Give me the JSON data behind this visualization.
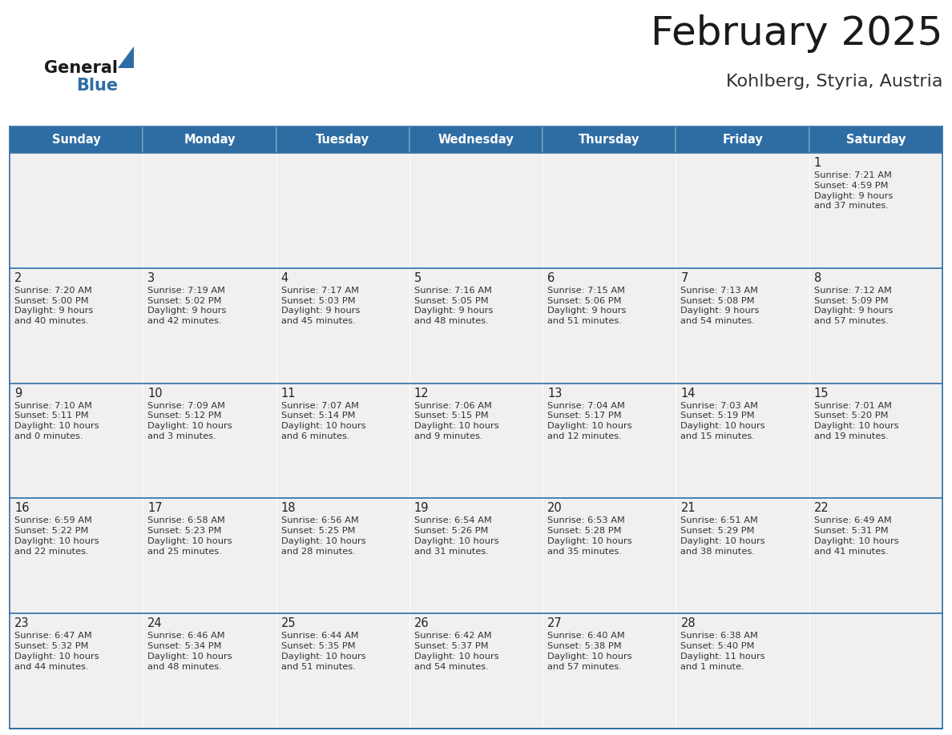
{
  "title": "February 2025",
  "subtitle": "Kohlberg, Styria, Austria",
  "header_bg": "#2E6DA4",
  "header_text": "#FFFFFF",
  "cell_bg": "#F0F0F0",
  "border_color": "#2E6DA4",
  "row_divider_color": "#2E6DA4",
  "day_headers": [
    "Sunday",
    "Monday",
    "Tuesday",
    "Wednesday",
    "Thursday",
    "Friday",
    "Saturday"
  ],
  "title_color": "#1a1a1a",
  "subtitle_color": "#333333",
  "cell_text_color": "#333333",
  "day_num_color": "#222222",
  "logo_color_general": "#1a1a1a",
  "logo_color_blue": "#2E6DA4",
  "logo_text_general": "General",
  "logo_text_blue": "Blue",
  "calendar_data": [
    [
      null,
      null,
      null,
      null,
      null,
      null,
      {
        "day": 1,
        "sunrise": "7:21 AM",
        "sunset": "4:59 PM",
        "daylight": "9 hours\nand 37 minutes."
      }
    ],
    [
      {
        "day": 2,
        "sunrise": "7:20 AM",
        "sunset": "5:00 PM",
        "daylight": "9 hours\nand 40 minutes."
      },
      {
        "day": 3,
        "sunrise": "7:19 AM",
        "sunset": "5:02 PM",
        "daylight": "9 hours\nand 42 minutes."
      },
      {
        "day": 4,
        "sunrise": "7:17 AM",
        "sunset": "5:03 PM",
        "daylight": "9 hours\nand 45 minutes."
      },
      {
        "day": 5,
        "sunrise": "7:16 AM",
        "sunset": "5:05 PM",
        "daylight": "9 hours\nand 48 minutes."
      },
      {
        "day": 6,
        "sunrise": "7:15 AM",
        "sunset": "5:06 PM",
        "daylight": "9 hours\nand 51 minutes."
      },
      {
        "day": 7,
        "sunrise": "7:13 AM",
        "sunset": "5:08 PM",
        "daylight": "9 hours\nand 54 minutes."
      },
      {
        "day": 8,
        "sunrise": "7:12 AM",
        "sunset": "5:09 PM",
        "daylight": "9 hours\nand 57 minutes."
      }
    ],
    [
      {
        "day": 9,
        "sunrise": "7:10 AM",
        "sunset": "5:11 PM",
        "daylight": "10 hours\nand 0 minutes."
      },
      {
        "day": 10,
        "sunrise": "7:09 AM",
        "sunset": "5:12 PM",
        "daylight": "10 hours\nand 3 minutes."
      },
      {
        "day": 11,
        "sunrise": "7:07 AM",
        "sunset": "5:14 PM",
        "daylight": "10 hours\nand 6 minutes."
      },
      {
        "day": 12,
        "sunrise": "7:06 AM",
        "sunset": "5:15 PM",
        "daylight": "10 hours\nand 9 minutes."
      },
      {
        "day": 13,
        "sunrise": "7:04 AM",
        "sunset": "5:17 PM",
        "daylight": "10 hours\nand 12 minutes."
      },
      {
        "day": 14,
        "sunrise": "7:03 AM",
        "sunset": "5:19 PM",
        "daylight": "10 hours\nand 15 minutes."
      },
      {
        "day": 15,
        "sunrise": "7:01 AM",
        "sunset": "5:20 PM",
        "daylight": "10 hours\nand 19 minutes."
      }
    ],
    [
      {
        "day": 16,
        "sunrise": "6:59 AM",
        "sunset": "5:22 PM",
        "daylight": "10 hours\nand 22 minutes."
      },
      {
        "day": 17,
        "sunrise": "6:58 AM",
        "sunset": "5:23 PM",
        "daylight": "10 hours\nand 25 minutes."
      },
      {
        "day": 18,
        "sunrise": "6:56 AM",
        "sunset": "5:25 PM",
        "daylight": "10 hours\nand 28 minutes."
      },
      {
        "day": 19,
        "sunrise": "6:54 AM",
        "sunset": "5:26 PM",
        "daylight": "10 hours\nand 31 minutes."
      },
      {
        "day": 20,
        "sunrise": "6:53 AM",
        "sunset": "5:28 PM",
        "daylight": "10 hours\nand 35 minutes."
      },
      {
        "day": 21,
        "sunrise": "6:51 AM",
        "sunset": "5:29 PM",
        "daylight": "10 hours\nand 38 minutes."
      },
      {
        "day": 22,
        "sunrise": "6:49 AM",
        "sunset": "5:31 PM",
        "daylight": "10 hours\nand 41 minutes."
      }
    ],
    [
      {
        "day": 23,
        "sunrise": "6:47 AM",
        "sunset": "5:32 PM",
        "daylight": "10 hours\nand 44 minutes."
      },
      {
        "day": 24,
        "sunrise": "6:46 AM",
        "sunset": "5:34 PM",
        "daylight": "10 hours\nand 48 minutes."
      },
      {
        "day": 25,
        "sunrise": "6:44 AM",
        "sunset": "5:35 PM",
        "daylight": "10 hours\nand 51 minutes."
      },
      {
        "day": 26,
        "sunrise": "6:42 AM",
        "sunset": "5:37 PM",
        "daylight": "10 hours\nand 54 minutes."
      },
      {
        "day": 27,
        "sunrise": "6:40 AM",
        "sunset": "5:38 PM",
        "daylight": "10 hours\nand 57 minutes."
      },
      {
        "day": 28,
        "sunrise": "6:38 AM",
        "sunset": "5:40 PM",
        "daylight": "11 hours\nand 1 minute."
      },
      null
    ]
  ]
}
